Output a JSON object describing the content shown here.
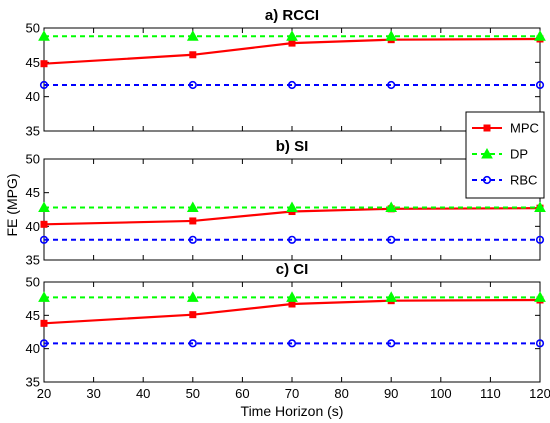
{
  "chart_data": [
    {
      "type": "line",
      "title": "a) RCCI",
      "x": [
        20,
        50,
        70,
        90,
        120
      ],
      "ylim": [
        35,
        50
      ],
      "yticks": [
        35,
        40,
        45,
        50
      ],
      "series": [
        {
          "name": "MPC",
          "values": [
            44.8,
            46.1,
            47.8,
            48.3,
            48.4
          ]
        },
        {
          "name": "DP",
          "values": [
            48.8,
            48.8,
            48.8,
            48.8,
            48.8
          ]
        },
        {
          "name": "RBC",
          "values": [
            41.7,
            41.7,
            41.7,
            41.7,
            41.7
          ]
        }
      ]
    },
    {
      "type": "line",
      "title": "b) SI",
      "x": [
        20,
        50,
        70,
        90,
        120
      ],
      "ylim": [
        35,
        50
      ],
      "yticks": [
        35,
        40,
        45,
        50
      ],
      "series": [
        {
          "name": "MPC",
          "values": [
            40.3,
            40.8,
            42.2,
            42.6,
            42.7
          ]
        },
        {
          "name": "DP",
          "values": [
            42.8,
            42.8,
            42.8,
            42.8,
            42.8
          ]
        },
        {
          "name": "RBC",
          "values": [
            38.0,
            38.0,
            38.0,
            38.0,
            38.0
          ]
        }
      ]
    },
    {
      "type": "line",
      "title": "c) CI",
      "x": [
        20,
        50,
        70,
        90,
        120
      ],
      "ylim": [
        35,
        50
      ],
      "yticks": [
        35,
        40,
        45,
        50
      ],
      "series": [
        {
          "name": "MPC",
          "values": [
            43.8,
            45.1,
            46.7,
            47.2,
            47.3
          ]
        },
        {
          "name": "DP",
          "values": [
            47.7,
            47.7,
            47.7,
            47.7,
            47.7
          ]
        },
        {
          "name": "RBC",
          "values": [
            40.8,
            40.8,
            40.8,
            40.8,
            40.8
          ]
        }
      ]
    }
  ],
  "shared": {
    "xlabel": "Time Horizon (s)",
    "ylabel": "FE (MPG)",
    "xlim": [
      20,
      120
    ],
    "xticks": [
      20,
      30,
      40,
      50,
      60,
      70,
      80,
      90,
      100,
      110,
      120
    ]
  },
  "legend": {
    "position": "right",
    "items": [
      {
        "name": "MPC",
        "color": "#ff0000",
        "marker": "square",
        "dash": "solid"
      },
      {
        "name": "DP",
        "color": "#00ff00",
        "marker": "triangle",
        "dash": "dashed"
      },
      {
        "name": "RBC",
        "color": "#0000ff",
        "marker": "circle",
        "dash": "dashed"
      }
    ]
  },
  "colors": {
    "MPC": "#ff0000",
    "DP": "#00ff00",
    "RBC": "#0000ff"
  }
}
